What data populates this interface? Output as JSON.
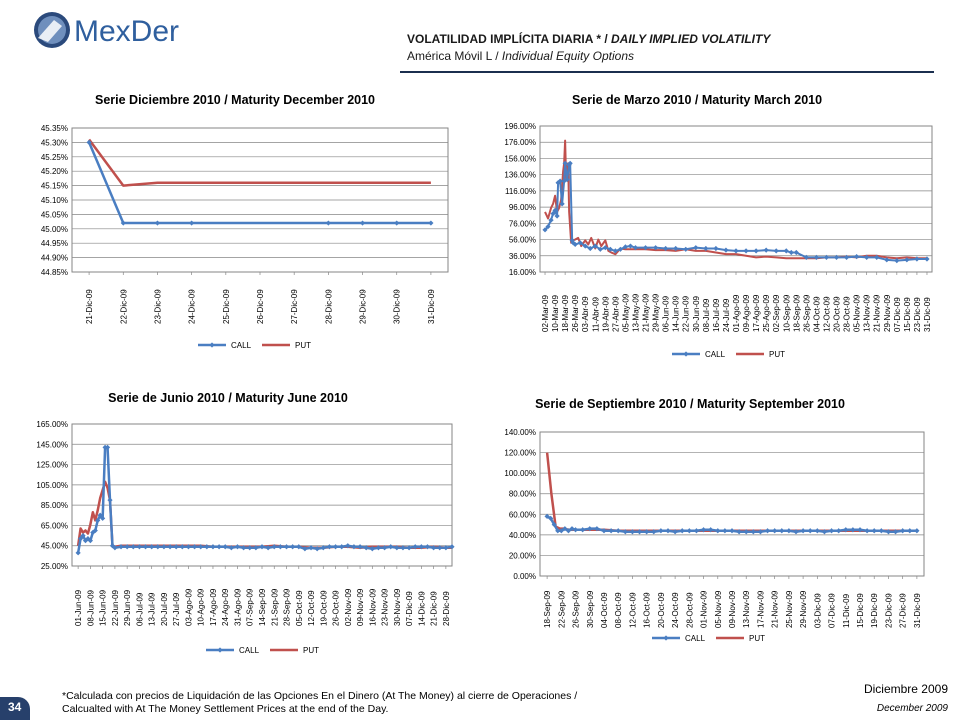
{
  "logo": {
    "text": "MexDer"
  },
  "header": {
    "title_es": "VOLATILIDAD IMPLÍCITA DIARIA * / ",
    "title_en": "DAILY IMPLIED VOLATILITY",
    "subtitle_es": "América Móvil L / ",
    "subtitle_en": "Individual Equity Options"
  },
  "colors": {
    "call": "#4a7ec2",
    "put": "#c0504d",
    "header_line": "#1b2f4f",
    "badge": "#27406b"
  },
  "chart_data": [
    {
      "id": "dec",
      "type": "line",
      "title": "Serie Diciembre 2010 / Maturity December 2010",
      "y_ticks": [
        "44.85%",
        "44.90%",
        "44.95%",
        "45.00%",
        "45.05%",
        "45.10%",
        "45.15%",
        "45.20%",
        "45.25%",
        "45.30%",
        "45.35%"
      ],
      "ylim": [
        44.85,
        45.35
      ],
      "categories": [
        "21-Dic-09",
        "22-Dic-09",
        "23-Dic-09",
        "24-Dic-09",
        "25-Dic-09",
        "26-Dic-09",
        "27-Dic-09",
        "28-Dic-09",
        "29-Dic-09",
        "30-Dic-09",
        "31-Dic-09"
      ],
      "legend": [
        "CALL",
        "PUT"
      ],
      "series": [
        {
          "name": "CALL",
          "x": [
            0,
            1,
            2,
            3,
            7,
            8,
            9,
            10
          ],
          "values": [
            45.3,
            45.02,
            45.02,
            45.02,
            45.02,
            45.02,
            45.02,
            45.02
          ],
          "markers": true
        },
        {
          "name": "PUT",
          "x": [
            0,
            1,
            2,
            3,
            7,
            8,
            9,
            10
          ],
          "values": [
            45.31,
            45.15,
            45.16,
            45.16,
            45.16,
            45.16,
            45.16,
            45.16
          ],
          "markers": false
        }
      ]
    },
    {
      "id": "mar",
      "type": "line",
      "title": "Serie de Marzo 2010 / Maturity March 2010",
      "y_ticks": [
        "16.00%",
        "36.00%",
        "56.00%",
        "76.00%",
        "96.00%",
        "116.00%",
        "136.00%",
        "156.00%",
        "176.00%",
        "196.00%"
      ],
      "ylim": [
        16,
        196
      ],
      "categories": [
        "02-Mar-09",
        "10-Mar-09",
        "18-Mar-09",
        "26-Mar-09",
        "03-Abr-09",
        "11-Abr-09",
        "19-Abr-09",
        "27-Abr-09",
        "05-May-09",
        "13-May-09",
        "21-May-09",
        "29-May-09",
        "06-Jun-09",
        "14-Jun-09",
        "22-Jun-09",
        "30-Jun-09",
        "08-Jul-09",
        "16-Jul-09",
        "24-Jul-09",
        "01-Ago-09",
        "09-Ago-09",
        "17-Ago-09",
        "25-Ago-09",
        "02-Sep-09",
        "10-Sep-09",
        "18-Sep-09",
        "26-Sep-09",
        "04-Oct-09",
        "12-Oct-09",
        "20-Oct-09",
        "28-Oct-09",
        "05-Nov-09",
        "13-Nov-09",
        "21-Nov-09",
        "29-Nov-09",
        "07-Dic-09",
        "15-Dic-09",
        "23-Dic-09",
        "31-Dic-09"
      ],
      "legend": [
        "CALL",
        "PUT"
      ],
      "series": [
        {
          "name": "CALL",
          "markers": true,
          "x": [
            0,
            0.3,
            0.6,
            0.8,
            1.0,
            1.2,
            1.3,
            1.5,
            1.7,
            1.9,
            2.0,
            2.2,
            2.4,
            2.5,
            2.7,
            2.8,
            3,
            3.5,
            4,
            4.5,
            5,
            5.5,
            6,
            6.5,
            7,
            7.5,
            8,
            8.5,
            9,
            10,
            11,
            12,
            13,
            14,
            15,
            16,
            17,
            18,
            19,
            20,
            21,
            22,
            23,
            24,
            24.5,
            25,
            26,
            27,
            28,
            29,
            30,
            31,
            32,
            33,
            34,
            35,
            36,
            37,
            38
          ],
          "values": [
            68,
            72,
            80,
            88,
            92,
            85,
            126,
            128,
            100,
            128,
            150,
            130,
            148,
            150,
            55,
            52,
            50,
            52,
            48,
            45,
            48,
            44,
            46,
            44,
            42,
            44,
            47,
            48,
            46,
            46,
            46,
            45,
            45,
            44,
            46,
            45,
            45,
            43,
            42,
            42,
            42,
            43,
            42,
            42,
            40,
            40,
            34,
            34,
            34,
            34,
            34,
            35,
            34,
            34,
            31,
            30,
            31,
            32,
            32
          ]
        },
        {
          "name": "PUT",
          "markers": false,
          "x": [
            0,
            0.3,
            0.6,
            0.8,
            1.0,
            1.2,
            1.4,
            1.6,
            1.8,
            1.9,
            2.0,
            2.1,
            2.2,
            2.3,
            2.4,
            2.6,
            2.8,
            3,
            3.3,
            3.6,
            4,
            4.3,
            4.6,
            5,
            5.3,
            5.6,
            6,
            6.3,
            6.6,
            7,
            7.5,
            8,
            9,
            10,
            11,
            12,
            13,
            14,
            15,
            16,
            17,
            18,
            19,
            20,
            21,
            22,
            23,
            24,
            25,
            26,
            27,
            28,
            29,
            30,
            31,
            32,
            33,
            34,
            35,
            36,
            37,
            38
          ],
          "values": [
            90,
            82,
            95,
            100,
            110,
            90,
            95,
            105,
            140,
            150,
            178,
            130,
            145,
            150,
            90,
            52,
            55,
            56,
            58,
            48,
            55,
            50,
            58,
            45,
            56,
            48,
            55,
            42,
            40,
            38,
            45,
            44,
            44,
            44,
            43,
            43,
            42,
            44,
            42,
            42,
            40,
            38,
            38,
            36,
            34,
            35,
            34,
            33,
            33,
            33,
            33,
            34,
            34,
            35,
            34,
            36,
            36,
            34,
            33,
            34,
            33,
            33
          ]
        }
      ]
    },
    {
      "id": "jun",
      "type": "line",
      "title": "Serie de Junio 2010 / Maturity June 2010",
      "y_ticks": [
        "25.00%",
        "45.00%",
        "65.00%",
        "85.00%",
        "105.00%",
        "125.00%",
        "145.00%",
        "165.00%"
      ],
      "ylim": [
        25,
        165
      ],
      "categories": [
        "01-Jun-09",
        "08-Jun-09",
        "15-Jun-09",
        "22-Jun-09",
        "29-Jun-09",
        "06-Jul-09",
        "13-Jul-09",
        "20-Jul-09",
        "27-Jul-09",
        "03-Ago-09",
        "10-Ago-09",
        "17-Ago-09",
        "24-Ago-09",
        "31-Ago-09",
        "07-Sep-09",
        "14-Sep-09",
        "21-Sep-09",
        "28-Sep-09",
        "05-Oct-09",
        "12-Oct-09",
        "19-Oct-09",
        "26-Oct-09",
        "02-Nov-09",
        "09-Nov-09",
        "16-Nov-09",
        "23-Nov-09",
        "30-Nov-09",
        "07-Dic-09",
        "14-Dic-09",
        "21-Dic-09",
        "28-Dic-09"
      ],
      "legend": [
        "CALL",
        "PUT"
      ],
      "series": [
        {
          "name": "CALL",
          "markers": true,
          "x": [
            0,
            0.2,
            0.4,
            0.6,
            0.8,
            1.0,
            1.2,
            1.4,
            1.6,
            1.8,
            2.0,
            2.2,
            2.4,
            2.6,
            2.8,
            3.0,
            3.5,
            4,
            4.5,
            5,
            5.5,
            6,
            6.5,
            7,
            7.5,
            8,
            8.5,
            9,
            9.5,
            10,
            10.5,
            11,
            11.5,
            12,
            12.5,
            13,
            13.5,
            14,
            14.5,
            15,
            15.5,
            16,
            16.5,
            17,
            17.5,
            18,
            18.5,
            19,
            19.5,
            20,
            20.5,
            21,
            21.5,
            22,
            22.5,
            23,
            23.5,
            24,
            24.5,
            25,
            25.5,
            26,
            26.5,
            27,
            27.5,
            28,
            28.5,
            29,
            29.5,
            30,
            30.5
          ],
          "values": [
            38,
            52,
            55,
            50,
            52,
            50,
            58,
            60,
            70,
            75,
            72,
            142,
            142,
            90,
            45,
            43,
            44,
            44,
            44,
            44,
            44,
            44,
            44,
            44,
            44,
            44,
            44,
            44,
            44,
            44,
            44,
            44,
            44,
            44,
            43,
            44,
            43,
            43,
            43,
            44,
            43,
            44,
            44,
            44,
            44,
            44,
            42,
            43,
            42,
            43,
            44,
            44,
            44,
            45,
            44,
            44,
            43,
            42,
            43,
            43,
            44,
            43,
            43,
            43,
            44,
            44,
            44,
            43,
            43,
            43,
            44
          ]
        },
        {
          "name": "PUT",
          "markers": false,
          "x": [
            0,
            0.2,
            0.4,
            0.6,
            0.8,
            1.0,
            1.2,
            1.4,
            1.6,
            1.8,
            2.0,
            2.2,
            2.4,
            2.6,
            2.8,
            3.0,
            3.5,
            4,
            5,
            6,
            7,
            8,
            9,
            10,
            11,
            12,
            13,
            14,
            15,
            16,
            17,
            18,
            19,
            20,
            21,
            22,
            23,
            24,
            25,
            26,
            27,
            28,
            29,
            30,
            30.5
          ],
          "values": [
            45,
            62,
            58,
            60,
            57,
            66,
            78,
            70,
            80,
            92,
            100,
            108,
            102,
            90,
            45,
            44,
            45,
            45,
            45,
            45,
            45,
            45,
            45,
            45,
            44,
            44,
            44,
            44,
            44,
            45,
            44,
            44,
            43,
            43,
            44,
            44,
            43,
            44,
            44,
            44,
            43,
            43,
            44,
            43,
            43
          ]
        }
      ]
    },
    {
      "id": "sep",
      "type": "line",
      "title": "Serie de Septiembre 2010 / Maturity September 2010",
      "y_ticks": [
        "0.00%",
        "20.00%",
        "40.00%",
        "60.00%",
        "80.00%",
        "100.00%",
        "120.00%",
        "140.00%"
      ],
      "ylim": [
        0,
        140
      ],
      "categories": [
        "18-Sep-09",
        "22-Sep-09",
        "26-Sep-09",
        "30-Sep-09",
        "04-Oct-09",
        "08-Oct-09",
        "12-Oct-09",
        "16-Oct-09",
        "20-Oct-09",
        "24-Oct-09",
        "28-Oct-09",
        "01-Nov-09",
        "05-Nov-09",
        "09-Nov-09",
        "13-Nov-09",
        "17-Nov-09",
        "21-Nov-09",
        "25-Nov-09",
        "29-Nov-09",
        "03-Dic-09",
        "07-Dic-09",
        "11-Dic-09",
        "15-Dic-09",
        "19-Dic-09",
        "23-Dic-09",
        "27-Dic-09",
        "31-Dic-09"
      ],
      "legend": [
        "CALL",
        "PUT"
      ],
      "series": [
        {
          "name": "CALL",
          "markers": true,
          "x": [
            0,
            0.25,
            0.5,
            0.75,
            1,
            1.25,
            1.5,
            1.75,
            2,
            2.5,
            3,
            3.5,
            4,
            4.5,
            5,
            5.5,
            6,
            6.5,
            7,
            7.5,
            8,
            8.5,
            9,
            9.5,
            10,
            10.5,
            11,
            11.5,
            12,
            12.5,
            13,
            13.5,
            14,
            14.5,
            15,
            15.5,
            16,
            16.5,
            17,
            17.5,
            18,
            18.5,
            19,
            19.5,
            20,
            20.5,
            21,
            21.5,
            22,
            22.5,
            23,
            23.5,
            24,
            24.5,
            25,
            25.5,
            26
          ],
          "values": [
            58,
            56,
            50,
            44,
            44,
            46,
            44,
            46,
            45,
            45,
            46,
            46,
            44,
            44,
            44,
            43,
            43,
            43,
            43,
            43,
            44,
            44,
            43,
            44,
            44,
            44,
            45,
            45,
            44,
            44,
            44,
            43,
            43,
            43,
            43,
            44,
            44,
            44,
            44,
            43,
            44,
            44,
            44,
            43,
            44,
            44,
            45,
            45,
            45,
            44,
            44,
            44,
            43,
            43,
            44,
            44,
            44
          ]
        },
        {
          "name": "PUT",
          "markers": false,
          "x": [
            0,
            0.3,
            0.6,
            0.9,
            1.2,
            1.5,
            2,
            3,
            4,
            5,
            6,
            7,
            8,
            9,
            10,
            11,
            12,
            13,
            14,
            15,
            16,
            17,
            18,
            19,
            20,
            21,
            22,
            23,
            24,
            25,
            26
          ],
          "values": [
            120,
            80,
            48,
            46,
            46,
            45,
            45,
            45,
            45,
            44,
            44,
            44,
            44,
            44,
            44,
            44,
            44,
            44,
            44,
            44,
            44,
            44,
            44,
            44,
            44,
            44,
            44,
            44,
            44,
            44,
            44
          ]
        }
      ]
    }
  ],
  "footer": {
    "footnote_es": "*Calculada con precios de Liquidación de las Opciones En el Dinero (At The Money) al cierre de Operaciones /",
    "footnote_en": "Calcualted with At The Money Settlement Prices at the end of the Day.",
    "date_es": "Diciembre 2009",
    "date_en": "December 2009",
    "page": "34"
  }
}
